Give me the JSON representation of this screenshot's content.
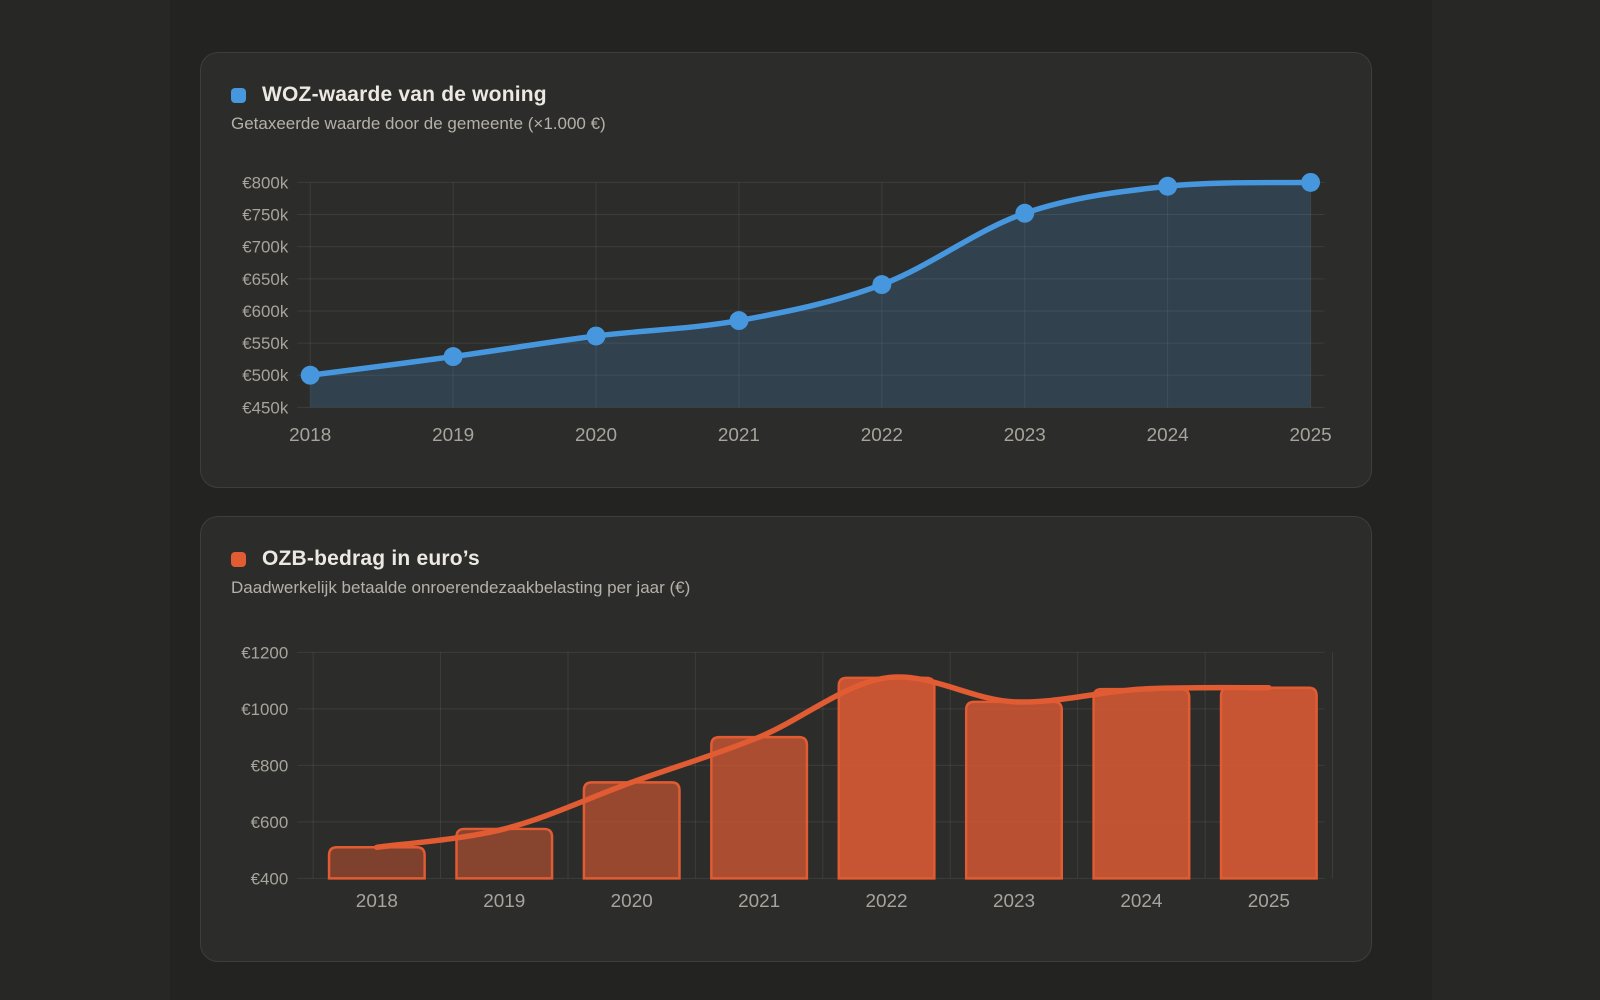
{
  "colors": {
    "blue": "#4697de",
    "orange": "#e15b33",
    "card_bg": "#2c2c2a",
    "page_bg": "#272725",
    "grid": "rgba(235,235,225,0.09)",
    "tick_text": "#a7a49d",
    "title_text": "#ece9e2",
    "subtitle_text": "#b4b1a9"
  },
  "chart_data": [
    {
      "type": "area",
      "title": "WOZ-waarde van de woning",
      "subtitle": "Getaxeerde waarde door de gemeente (×1.000 €)",
      "categories": [
        "2018",
        "2019",
        "2020",
        "2021",
        "2022",
        "2023",
        "2024",
        "2025"
      ],
      "series": [
        {
          "name": "WOZ-waarde",
          "values": [
            500,
            529,
            561,
            585,
            641,
            752,
            794,
            800
          ]
        }
      ],
      "ylim": [
        450,
        800
      ],
      "ytick_values": [
        450,
        500,
        550,
        600,
        650,
        700,
        750,
        800
      ],
      "ytick_labels": [
        "€450k",
        "€500k",
        "€550k",
        "€600k",
        "€650k",
        "€700k",
        "€750k",
        "€800k"
      ],
      "grid": true,
      "legend_position": "top-left",
      "color": "#4697de",
      "area_fill_opacity": 0.2,
      "show_points": true
    },
    {
      "type": "bar",
      "title": "OZB-bedrag in euro’s",
      "subtitle": "Daadwerkelijk betaalde onroerendezaakbelasting per jaar (€)",
      "categories": [
        "2018",
        "2019",
        "2020",
        "2021",
        "2022",
        "2023",
        "2024",
        "2025"
      ],
      "values": [
        510,
        575,
        740,
        900,
        1110,
        1025,
        1070,
        1075
      ],
      "ylim": [
        400,
        1200
      ],
      "ytick_values": [
        400,
        600,
        800,
        1000,
        1200
      ],
      "ytick_labels": [
        "€400",
        "€600",
        "€800",
        "€1000",
        "€1200"
      ],
      "grid": true,
      "legend_position": "top-left",
      "color": "#e15b33",
      "bar_fill_opacities": [
        0.45,
        0.5,
        0.6,
        0.7,
        0.86,
        0.78,
        0.82,
        0.86
      ],
      "line_overlay": true
    }
  ]
}
